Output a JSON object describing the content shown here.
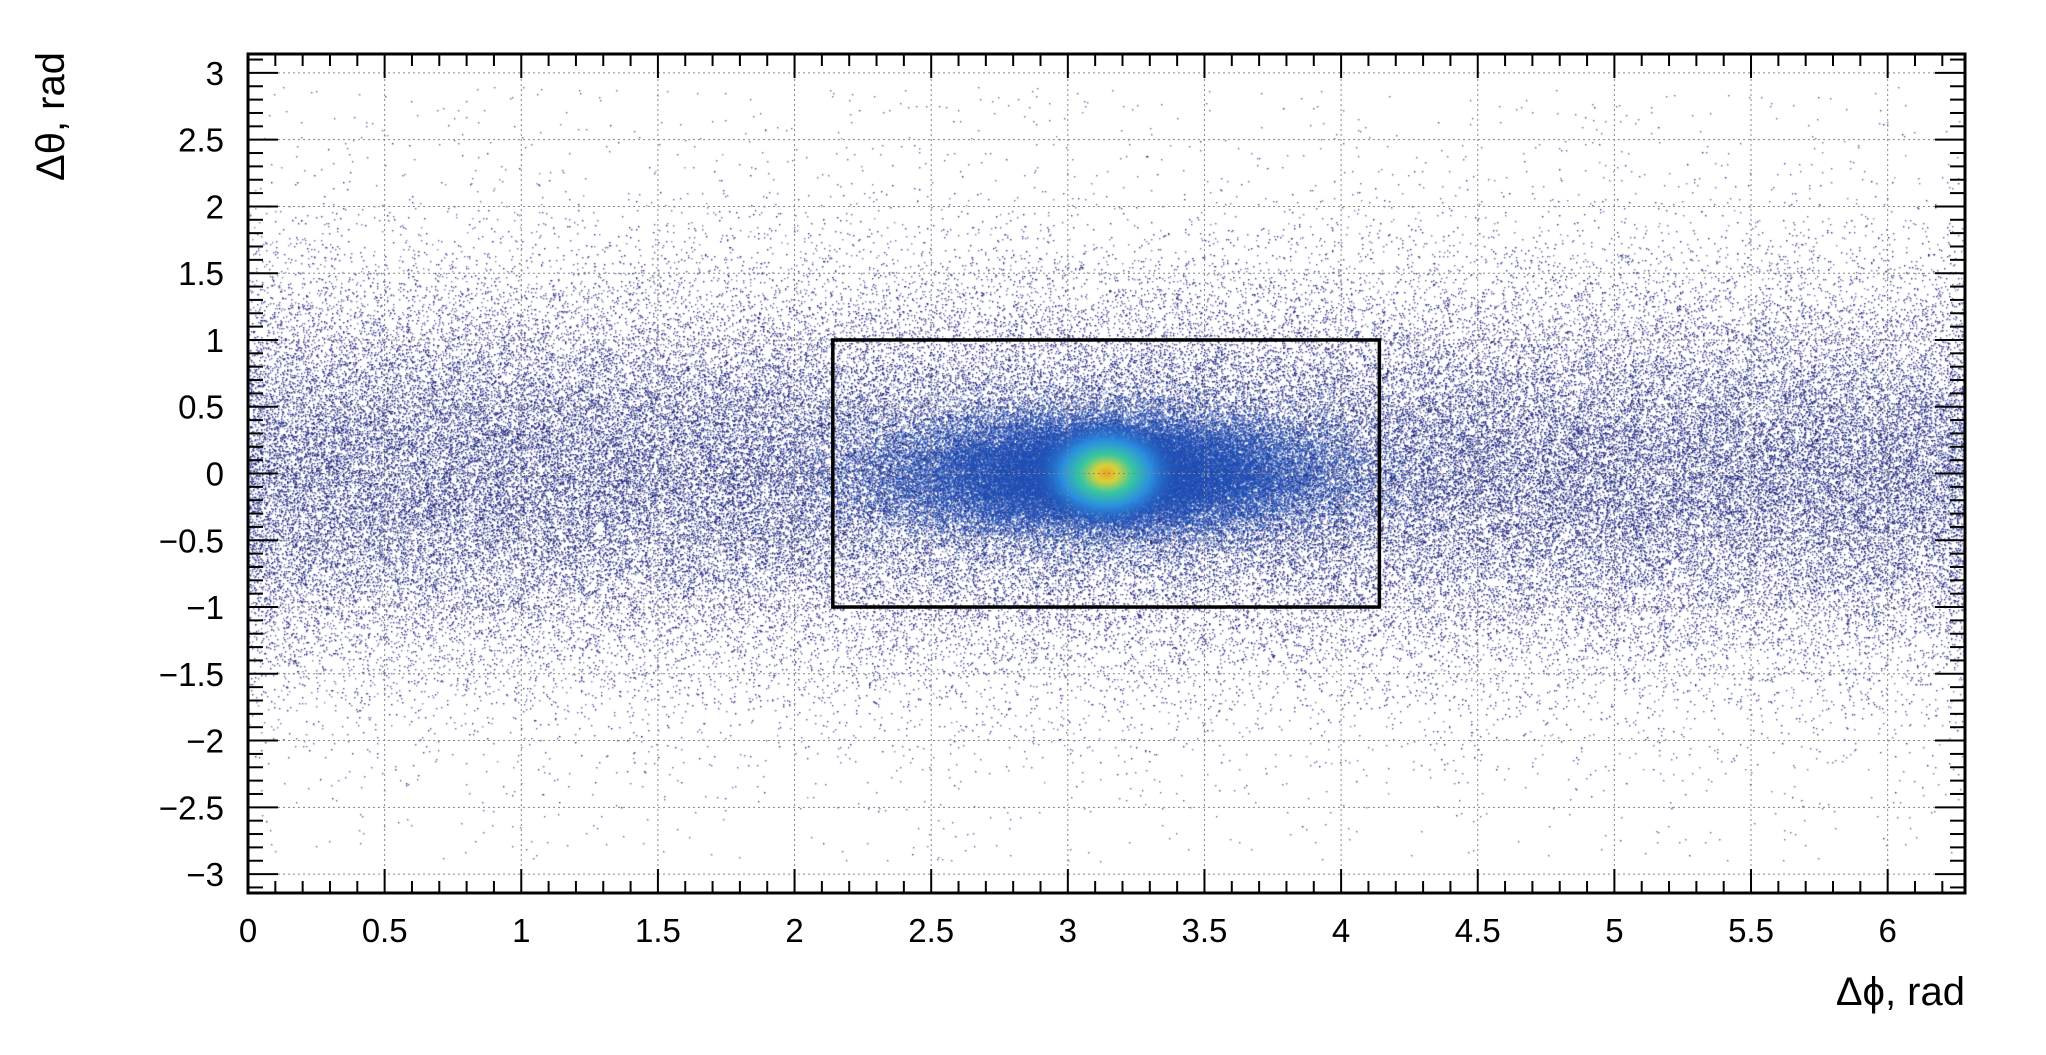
{
  "chart_data": {
    "type": "heatmap",
    "xlabel": "Δϕ, rad",
    "ylabel": "Δθ, rad",
    "xlim": [
      0,
      6.283
    ],
    "ylim": [
      -3.1416,
      3.1416
    ],
    "x_ticks": [
      0,
      0.5,
      1,
      1.5,
      2,
      2.5,
      3,
      3.5,
      4,
      4.5,
      5,
      5.5,
      6
    ],
    "x_tick_labels": [
      "0",
      "0.5",
      "1",
      "1.5",
      "2",
      "2.5",
      "3",
      "3.5",
      "4",
      "4.5",
      "5",
      "5.5",
      "6"
    ],
    "y_ticks": [
      3,
      2.5,
      2,
      1.5,
      1,
      0.5,
      0,
      -0.5,
      -1,
      -1.5,
      -2,
      -2.5,
      -3
    ],
    "y_tick_labels": [
      "3",
      "2.5",
      "2",
      "1.5",
      "1",
      "0.5",
      "0",
      "−0.5",
      "−1",
      "−1.5",
      "−2",
      "−2.5",
      "−3"
    ],
    "grid": true,
    "grid_style": "dotted",
    "colormap": [
      "#1a237e",
      "#1f4fb5",
      "#2b8fe0",
      "#39c7a0",
      "#d8d23a",
      "#f0a020"
    ],
    "peak": {
      "x": 3.1416,
      "y": 0
    },
    "selection_box": {
      "x_min": 2.14,
      "x_max": 4.14,
      "y_min": -1,
      "y_max": 1
    },
    "box_color": "#000000"
  }
}
